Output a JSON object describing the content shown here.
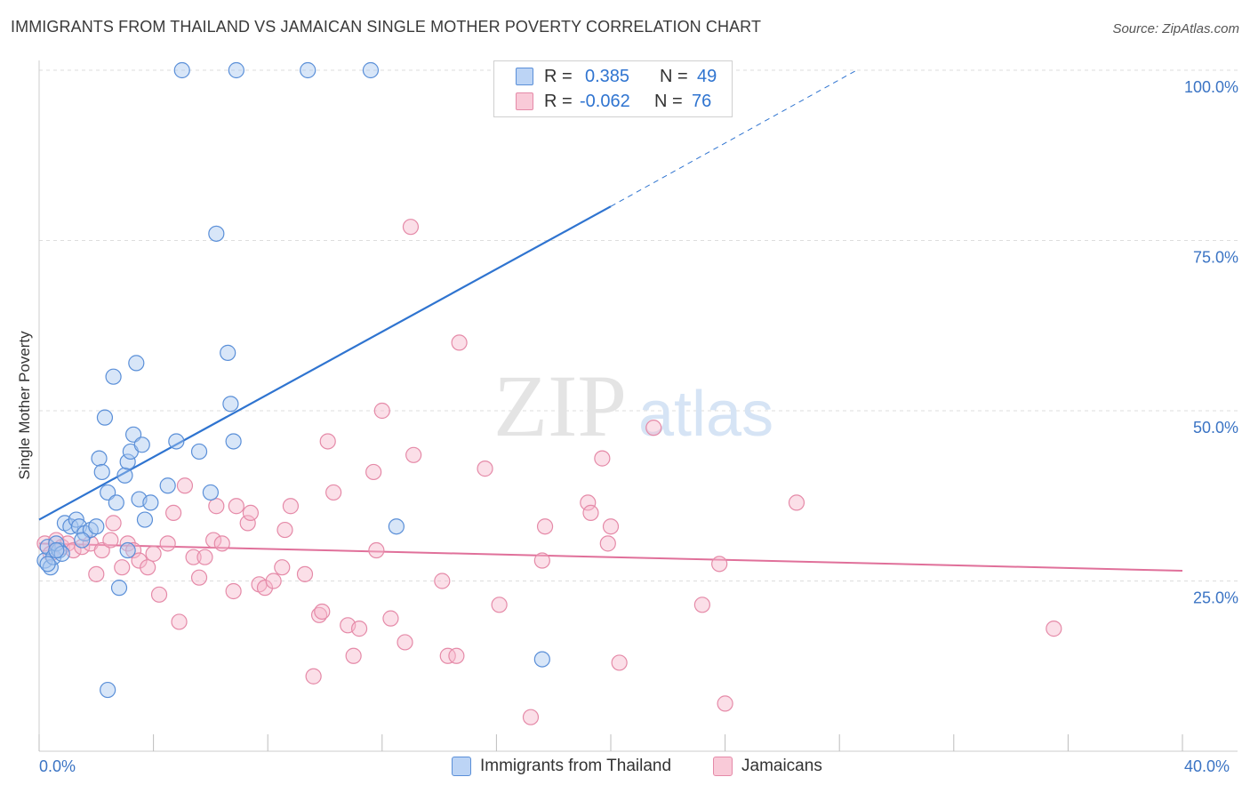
{
  "title": "IMMIGRANTS FROM THAILAND VS JAMAICAN SINGLE MOTHER POVERTY CORRELATION CHART",
  "source": "Source: ZipAtlas.com",
  "watermark": {
    "zip": "ZIP",
    "atlas": "atlas"
  },
  "legend": {
    "rows": [
      {
        "r_label": "R =",
        "r_value": "0.385",
        "n_label": "N =",
        "n_value": "49"
      },
      {
        "r_label": "R =",
        "r_value": "-0.062",
        "n_label": "N =",
        "n_value": "76"
      }
    ]
  },
  "bottom_legend": {
    "series1": "Immigrants from Thailand",
    "series2": "Jamaicans"
  },
  "colors": {
    "blue_fill": "#a9c8f0",
    "blue_stroke": "#5a8fd8",
    "blue_line": "#2f74d0",
    "pink_fill": "#f7b8cc",
    "pink_stroke": "#e58aa8",
    "pink_line": "#e0709a",
    "axis_text": "#3b74c4",
    "value_blue": "#2f74d0",
    "grid": "#dddddd"
  },
  "chart_data": {
    "type": "scatter",
    "title": "IMMIGRANTS FROM THAILAND VS JAMAICAN SINGLE MOTHER POVERTY CORRELATION CHART",
    "xlabel": "",
    "ylabel": "Single Mother Poverty",
    "xlim": [
      0,
      40
    ],
    "ylim": [
      0,
      100
    ],
    "x_tick_labels": [
      "0.0%",
      "40.0%"
    ],
    "y_ticks": [
      25,
      50,
      75,
      100
    ],
    "y_tick_labels": [
      "25.0%",
      "50.0%",
      "75.0%",
      "100.0%"
    ],
    "grid": "horizontal dashed",
    "legend_position": "top-center",
    "series": [
      {
        "name": "Immigrants from Thailand",
        "color": "#5a8fd8",
        "r": 0.385,
        "n": 49,
        "trend": {
          "x": [
            0,
            20
          ],
          "y": [
            34,
            80
          ]
        },
        "trend_extension": {
          "x": [
            20,
            28.6
          ],
          "y": [
            80,
            100
          ]
        },
        "points": [
          [
            0.2,
            28
          ],
          [
            0.4,
            27
          ],
          [
            0.3,
            30
          ],
          [
            0.5,
            28.5
          ],
          [
            0.7,
            29.5
          ],
          [
            0.6,
            30.5
          ],
          [
            0.8,
            29
          ],
          [
            0.9,
            33.5
          ],
          [
            1.1,
            33
          ],
          [
            1.3,
            34
          ],
          [
            1.4,
            33
          ],
          [
            1.6,
            32
          ],
          [
            1.8,
            32.5
          ],
          [
            2.0,
            33
          ],
          [
            1.5,
            31
          ],
          [
            2.1,
            43
          ],
          [
            2.2,
            41
          ],
          [
            2.3,
            49
          ],
          [
            2.4,
            38
          ],
          [
            2.6,
            55
          ],
          [
            2.7,
            36.5
          ],
          [
            2.8,
            24
          ],
          [
            3.0,
            40.5
          ],
          [
            3.1,
            29.5
          ],
          [
            3.1,
            42.5
          ],
          [
            3.2,
            44
          ],
          [
            3.3,
            46.5
          ],
          [
            3.4,
            57
          ],
          [
            3.5,
            37
          ],
          [
            3.6,
            45
          ],
          [
            3.7,
            34
          ],
          [
            3.9,
            36.5
          ],
          [
            4.5,
            39
          ],
          [
            4.8,
            45.5
          ],
          [
            5.6,
            44
          ],
          [
            6.0,
            38
          ],
          [
            6.2,
            76
          ],
          [
            6.6,
            58.5
          ],
          [
            6.7,
            51
          ],
          [
            6.8,
            45.5
          ],
          [
            5.0,
            100
          ],
          [
            6.9,
            100
          ],
          [
            9.4,
            100
          ],
          [
            11.6,
            100
          ],
          [
            12.5,
            33
          ],
          [
            17.6,
            13.5
          ],
          [
            2.4,
            9
          ],
          [
            0.3,
            27.5
          ],
          [
            0.6,
            29.5
          ]
        ]
      },
      {
        "name": "Jamaicans",
        "color": "#e58aa8",
        "r": -0.062,
        "n": 76,
        "trend": {
          "x": [
            0,
            40
          ],
          "y": [
            30.5,
            26.5
          ]
        },
        "points": [
          [
            0.2,
            30.5
          ],
          [
            0.4,
            29
          ],
          [
            0.6,
            31
          ],
          [
            0.8,
            30
          ],
          [
            1.0,
            30.5
          ],
          [
            1.2,
            29.5
          ],
          [
            1.5,
            30
          ],
          [
            1.8,
            30.5
          ],
          [
            2.0,
            26
          ],
          [
            2.2,
            29.5
          ],
          [
            2.5,
            31
          ],
          [
            2.6,
            33.5
          ],
          [
            2.9,
            27
          ],
          [
            3.1,
            30.5
          ],
          [
            3.3,
            29.5
          ],
          [
            3.5,
            28
          ],
          [
            3.8,
            27
          ],
          [
            4.0,
            29
          ],
          [
            4.2,
            23
          ],
          [
            4.5,
            30.5
          ],
          [
            4.7,
            35
          ],
          [
            4.9,
            19
          ],
          [
            5.1,
            39
          ],
          [
            5.4,
            28.5
          ],
          [
            5.6,
            25.5
          ],
          [
            5.8,
            28.5
          ],
          [
            6.1,
            31
          ],
          [
            6.2,
            36
          ],
          [
            6.4,
            30.5
          ],
          [
            6.8,
            23.5
          ],
          [
            6.9,
            36
          ],
          [
            7.3,
            33.5
          ],
          [
            7.4,
            35
          ],
          [
            7.7,
            24.5
          ],
          [
            7.9,
            24
          ],
          [
            8.2,
            25
          ],
          [
            8.5,
            27
          ],
          [
            8.6,
            32.5
          ],
          [
            8.8,
            36
          ],
          [
            9.3,
            26
          ],
          [
            9.6,
            11
          ],
          [
            9.8,
            20
          ],
          [
            9.9,
            20.5
          ],
          [
            10.1,
            45.5
          ],
          [
            10.3,
            38
          ],
          [
            10.8,
            18.5
          ],
          [
            11.0,
            14
          ],
          [
            11.2,
            18
          ],
          [
            11.7,
            41
          ],
          [
            11.8,
            29.5
          ],
          [
            12.0,
            50
          ],
          [
            12.3,
            19.5
          ],
          [
            12.8,
            16
          ],
          [
            13.1,
            43.5
          ],
          [
            13.0,
            77
          ],
          [
            14.1,
            25
          ],
          [
            14.3,
            14
          ],
          [
            14.6,
            14
          ],
          [
            14.7,
            60
          ],
          [
            15.6,
            41.5
          ],
          [
            16.1,
            21.5
          ],
          [
            17.2,
            5
          ],
          [
            17.6,
            28
          ],
          [
            17.7,
            33
          ],
          [
            19.2,
            36.5
          ],
          [
            19.3,
            35
          ],
          [
            19.7,
            43
          ],
          [
            19.9,
            30.5
          ],
          [
            20.0,
            33
          ],
          [
            20.3,
            13
          ],
          [
            21.5,
            47.5
          ],
          [
            23.2,
            21.5
          ],
          [
            23.8,
            27.5
          ],
          [
            24.0,
            7
          ],
          [
            26.5,
            36.5
          ],
          [
            35.5,
            18
          ]
        ]
      }
    ]
  }
}
